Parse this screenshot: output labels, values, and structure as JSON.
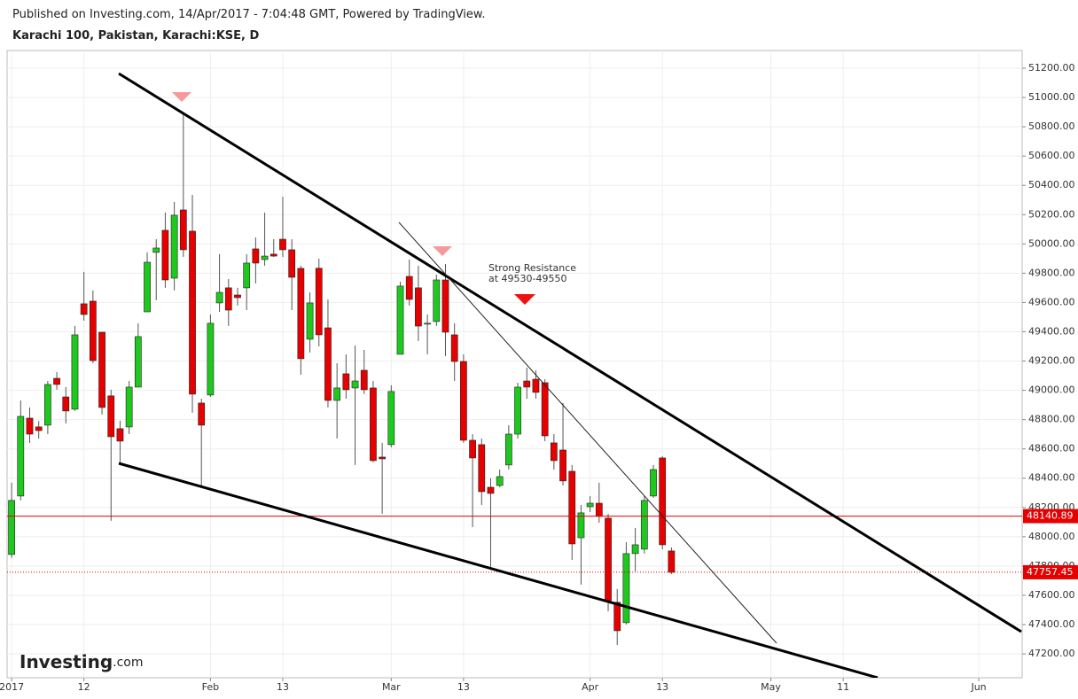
{
  "header": {
    "published": "Published on Investing.com, 14/Apr/2017 - 7:04:48 GMT, Powered by TradingView.",
    "symbol": "Karachi 100, Pakistan, Karachi:KSE, D"
  },
  "logo": {
    "brand": "Investing",
    "suffix": ".com"
  },
  "chart_data": {
    "type": "candlestick",
    "x": [
      0,
      1,
      2,
      3,
      4,
      5,
      6,
      7,
      8,
      9,
      10,
      11,
      12,
      13,
      14,
      15,
      16,
      17,
      18,
      19,
      20,
      21,
      22,
      23,
      24,
      25,
      26,
      27,
      28,
      29,
      30,
      31,
      32,
      33,
      34,
      35,
      36,
      37,
      38,
      39,
      40,
      41,
      42,
      43,
      44,
      45,
      46,
      47,
      48,
      49,
      50,
      51,
      52,
      53,
      54,
      55,
      56,
      57,
      58,
      59,
      60,
      61,
      62,
      63,
      64,
      65,
      66,
      67,
      68,
      69,
      70,
      71,
      72,
      73
    ],
    "open": [
      47879,
      48278,
      48810,
      48750,
      48762,
      49082,
      48955,
      48871,
      49591,
      49609,
      49397,
      48962,
      48738,
      48750,
      49022,
      49536,
      49942,
      50093,
      49766,
      50232,
      50087,
      48913,
      48968,
      49597,
      49700,
      49651,
      49700,
      49966,
      49893,
      49930,
      50032,
      49960,
      49833,
      49349,
      49834,
      49427,
      48931,
      49113,
      49016,
      49137,
      49016,
      48544,
      48629,
      49246,
      49778,
      49700,
      49452,
      49470,
      49754,
      49379,
      49197,
      48659,
      48629,
      48338,
      48350,
      48490,
      48701,
      49064,
      49076,
      49052,
      48641,
      48592,
      48447,
      47993,
      48205,
      48229,
      48127,
      47552,
      47413,
      47885,
      47915,
      48278,
      48538,
      47903
    ],
    "high": [
      48369,
      48931,
      48883,
      48790,
      49064,
      49125,
      49022,
      49440,
      49809,
      49682,
      49397,
      49004,
      48792,
      49064,
      49458,
      49942,
      50032,
      50214,
      50287,
      50891,
      50335,
      48943,
      49518,
      49930,
      49760,
      49700,
      49930,
      50044,
      50214,
      50032,
      50323,
      50032,
      49851,
      49669,
      49900,
      49621,
      49185,
      49246,
      49306,
      49276,
      49064,
      48641,
      49034,
      49742,
      49893,
      49851,
      49518,
      49790,
      49863,
      49458,
      49246,
      48701,
      48671,
      48399,
      48459,
      48762,
      49052,
      49155,
      49137,
      49076,
      48701,
      48913,
      48490,
      48217,
      48278,
      48369,
      48157,
      47643,
      47963,
      48060,
      48278,
      48490,
      48550,
      47927
    ],
    "low": [
      47855,
      48248,
      48641,
      48670,
      48701,
      49004,
      48774,
      48860,
      49476,
      49185,
      48835,
      48109,
      48508,
      48701,
      49022,
      49536,
      49615,
      49700,
      49682,
      49911,
      48847,
      48350,
      48955,
      49536,
      49440,
      49579,
      49548,
      49730,
      49851,
      49911,
      49911,
      49548,
      49107,
      49258,
      49300,
      48883,
      48671,
      48943,
      48490,
      48974,
      48508,
      48157,
      48611,
      49246,
      49579,
      49337,
      49246,
      49440,
      49234,
      49064,
      48641,
      48066,
      48217,
      47794,
      48338,
      48459,
      48671,
      48943,
      48943,
      48653,
      48459,
      48350,
      47842,
      47673,
      48169,
      48096,
      47491,
      47261,
      47401,
      47764,
      47885,
      48266,
      47915,
      47745
    ],
    "close": [
      48248,
      48822,
      48701,
      48725,
      49040,
      49040,
      48859,
      49379,
      49518,
      49203,
      48883,
      48683,
      48653,
      49022,
      49367,
      49875,
      49972,
      49754,
      50196,
      49960,
      48974,
      48762,
      49458,
      49669,
      49548,
      49633,
      49869,
      49869,
      49917,
      49917,
      49960,
      49772,
      49216,
      49597,
      49379,
      48931,
      49016,
      49004,
      49064,
      49004,
      48520,
      48532,
      48992,
      49712,
      49621,
      49439,
      49458,
      49754,
      49397,
      49197,
      48659,
      48538,
      48308,
      48296,
      48411,
      48701,
      49022,
      49022,
      48986,
      48689,
      48520,
      48381,
      47951,
      48163,
      48229,
      48139,
      47564,
      47358,
      47885,
      47945,
      48248,
      48459,
      47945,
      47757.45
    ],
    "up_color": "#1ec81e",
    "down_color": "#e60000",
    "wick_color": "#555555",
    "xlim": [
      -0.5,
      111.8
    ],
    "xticks": [
      {
        "value": 0,
        "label": "2017"
      },
      {
        "value": 8,
        "label": "12"
      },
      {
        "value": 22,
        "label": "Feb"
      },
      {
        "value": 30,
        "label": "13"
      },
      {
        "value": 42,
        "label": "Mar"
      },
      {
        "value": 50,
        "label": "13"
      },
      {
        "value": 64,
        "label": "Apr"
      },
      {
        "value": 72,
        "label": "13"
      },
      {
        "value": 84,
        "label": "May"
      },
      {
        "value": 92,
        "label": "11"
      },
      {
        "value": 107,
        "label": "Jun"
      }
    ],
    "ylim": [
      47037,
      51321
    ],
    "yticks": [
      {
        "value": 47200,
        "label": "47200.00"
      },
      {
        "value": 47400,
        "label": "47400.00"
      },
      {
        "value": 47600,
        "label": "47600.00"
      },
      {
        "value": 47800,
        "label": "47800.00"
      },
      {
        "value": 48000,
        "label": "48000.00"
      },
      {
        "value": 48200,
        "label": "48200.00"
      },
      {
        "value": 48400,
        "label": "48400.00"
      },
      {
        "value": 48600,
        "label": "48600.00"
      },
      {
        "value": 48800,
        "label": "48800.00"
      },
      {
        "value": 49000,
        "label": "49000.00"
      },
      {
        "value": 49200,
        "label": "49200.00"
      },
      {
        "value": 49400,
        "label": "49400.00"
      },
      {
        "value": 49600,
        "label": "49600.00"
      },
      {
        "value": 49800,
        "label": "49800.00"
      },
      {
        "value": 50000,
        "label": "50000.00"
      },
      {
        "value": 50200,
        "label": "50200.00"
      },
      {
        "value": 50400,
        "label": "50400.00"
      },
      {
        "value": 50600,
        "label": "50600.00"
      },
      {
        "value": 50800,
        "label": "50800.00"
      },
      {
        "value": 51000,
        "label": "51000.00"
      },
      {
        "value": 51200,
        "label": "51200.00"
      }
    ],
    "grid": true,
    "price_lines": [
      {
        "value": 48140.89,
        "color": "#e60000",
        "style": "solid"
      },
      {
        "value": 47757.45,
        "color": "#e60000",
        "style": "dotted"
      }
    ],
    "annotation": [
      "Strong Resistance",
      "at 49530-49550"
    ]
  }
}
